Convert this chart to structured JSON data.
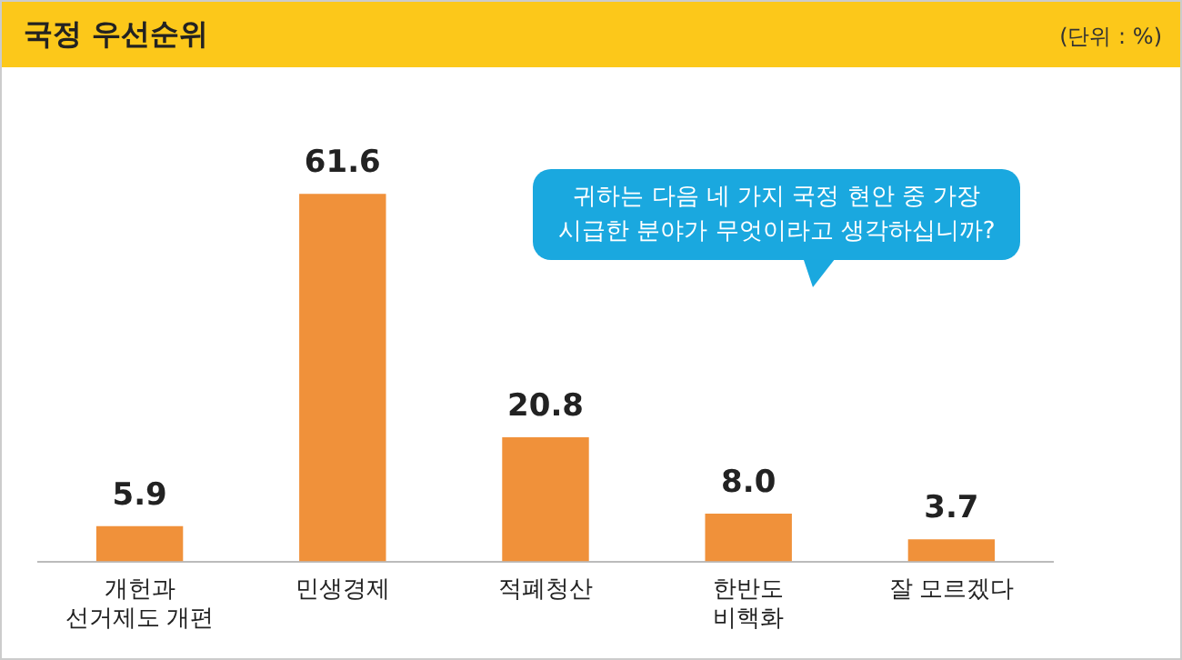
{
  "chart_data": {
    "type": "bar",
    "title": "국정 우선순위",
    "subtitle": "(단위 : %)",
    "categories": [
      "개헌과\n선거제도 개편",
      "민생경제",
      "적폐청산",
      "한반도\n비핵화",
      "잘 모르겠다"
    ],
    "values": [
      5.9,
      61.6,
      20.8,
      8.0,
      3.7
    ],
    "value_labels": [
      "5.9",
      "61.6",
      "20.8",
      "8.0",
      "3.7"
    ],
    "color": "#f0913a",
    "annotations": [
      "귀하는 다음 네 가지 국정 현안 중 가장\n시급한 분야가 무엇이라고 생각하십니까?"
    ],
    "grid": false,
    "legend": false
  }
}
